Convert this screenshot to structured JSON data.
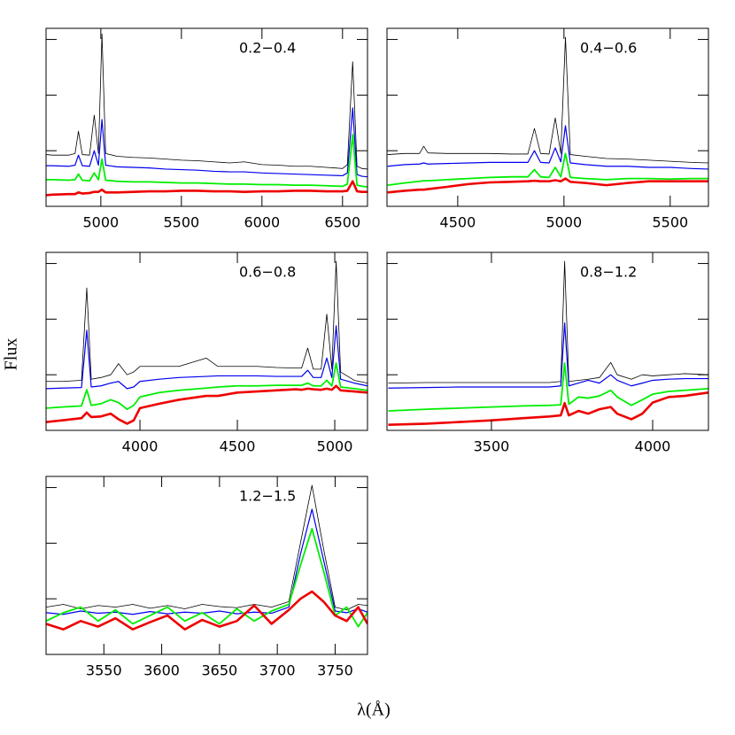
{
  "ylabel": "Flux",
  "xlabel": "λ(Å)",
  "chart_data": [
    {
      "type": "line",
      "annotation": "0.2−0.4",
      "xlim": [
        4660,
        6655
      ],
      "xticks": [
        5000,
        5500,
        6000,
        6500
      ],
      "ylim": [
        0,
        3.2
      ],
      "yticks": [
        0,
        1,
        2,
        3
      ],
      "x": [
        4660,
        4700,
        4800,
        4840,
        4861,
        4885,
        4930,
        4959,
        4985,
        5007,
        5030,
        5100,
        5200,
        5300,
        5400,
        5500,
        5600,
        5700,
        5800,
        5890,
        6000,
        6100,
        6200,
        6300,
        6400,
        6500,
        6530,
        6563,
        6590,
        6620,
        6655
      ],
      "series": [
        {
          "color": "#000000",
          "width": 0.8,
          "values": [
            0.93,
            0.92,
            0.92,
            0.95,
            1.35,
            0.93,
            0.92,
            1.64,
            0.95,
            3.1,
            0.95,
            0.9,
            0.88,
            0.87,
            0.85,
            0.83,
            0.82,
            0.8,
            0.78,
            0.8,
            0.75,
            0.74,
            0.72,
            0.72,
            0.7,
            0.68,
            0.75,
            2.6,
            0.72,
            0.68,
            0.67
          ]
        },
        {
          "color": "#0000ee",
          "width": 1.2,
          "values": [
            0.73,
            0.73,
            0.72,
            0.74,
            0.92,
            0.73,
            0.72,
            1.0,
            0.74,
            1.56,
            0.74,
            0.71,
            0.7,
            0.69,
            0.67,
            0.66,
            0.65,
            0.63,
            0.62,
            0.62,
            0.6,
            0.59,
            0.58,
            0.57,
            0.56,
            0.55,
            0.6,
            1.77,
            0.57,
            0.54,
            0.53
          ]
        },
        {
          "color": "#00ee00",
          "width": 1.8,
          "values": [
            0.48,
            0.48,
            0.47,
            0.48,
            0.58,
            0.47,
            0.46,
            0.6,
            0.48,
            0.85,
            0.47,
            0.45,
            0.44,
            0.44,
            0.43,
            0.42,
            0.42,
            0.41,
            0.4,
            0.4,
            0.39,
            0.39,
            0.38,
            0.38,
            0.37,
            0.36,
            0.4,
            1.29,
            0.38,
            0.36,
            0.35
          ]
        },
        {
          "color": "#ee0000",
          "width": 2.6,
          "values": [
            0.2,
            0.21,
            0.22,
            0.22,
            0.25,
            0.23,
            0.24,
            0.26,
            0.26,
            0.3,
            0.25,
            0.25,
            0.26,
            0.27,
            0.27,
            0.28,
            0.28,
            0.27,
            0.27,
            0.26,
            0.27,
            0.27,
            0.28,
            0.28,
            0.27,
            0.27,
            0.28,
            0.45,
            0.27,
            0.26,
            0.26
          ]
        }
      ]
    },
    {
      "type": "line",
      "annotation": "0.4−0.6",
      "xlim": [
        4167,
        5680
      ],
      "xticks": [
        4500,
        5000,
        5500
      ],
      "ylim": [
        0,
        3.2
      ],
      "yticks": [
        0,
        1,
        2,
        3
      ],
      "x": [
        4170,
        4250,
        4320,
        4340,
        4360,
        4450,
        4550,
        4650,
        4750,
        4830,
        4861,
        4890,
        4930,
        4959,
        4985,
        5007,
        5030,
        5100,
        5200,
        5300,
        5400,
        5500,
        5600,
        5680
      ],
      "series": [
        {
          "color": "#000000",
          "width": 0.8,
          "values": [
            0.93,
            0.95,
            0.95,
            1.08,
            0.96,
            0.95,
            0.95,
            0.95,
            0.94,
            0.94,
            1.4,
            0.95,
            0.94,
            1.59,
            0.95,
            3.04,
            0.93,
            0.9,
            0.86,
            0.85,
            0.83,
            0.81,
            0.79,
            0.78
          ]
        },
        {
          "color": "#0000ee",
          "width": 1.2,
          "values": [
            0.72,
            0.75,
            0.76,
            0.78,
            0.76,
            0.77,
            0.78,
            0.79,
            0.79,
            0.79,
            1.0,
            0.79,
            0.78,
            1.05,
            0.8,
            1.45,
            0.78,
            0.75,
            0.72,
            0.72,
            0.7,
            0.7,
            0.68,
            0.67
          ]
        },
        {
          "color": "#00ee00",
          "width": 1.8,
          "values": [
            0.38,
            0.42,
            0.45,
            0.46,
            0.46,
            0.48,
            0.5,
            0.52,
            0.53,
            0.53,
            0.66,
            0.53,
            0.52,
            0.7,
            0.53,
            0.95,
            0.52,
            0.5,
            0.48,
            0.5,
            0.5,
            0.49,
            0.5,
            0.5
          ]
        },
        {
          "color": "#ee0000",
          "width": 2.6,
          "values": [
            0.25,
            0.28,
            0.3,
            0.3,
            0.31,
            0.35,
            0.4,
            0.43,
            0.44,
            0.45,
            0.46,
            0.45,
            0.45,
            0.47,
            0.45,
            0.5,
            0.44,
            0.42,
            0.38,
            0.42,
            0.45,
            0.45,
            0.45,
            0.45
          ]
        }
      ]
    },
    {
      "type": "line",
      "annotation": "0.6−0.8",
      "xlim": [
        3518,
        5168
      ],
      "xticks": [
        4000,
        4500,
        5000
      ],
      "ylim": [
        0,
        3.2
      ],
      "yticks": [
        0,
        1,
        2,
        3
      ],
      "x": [
        3520,
        3600,
        3700,
        3727,
        3750,
        3800,
        3850,
        3890,
        3934,
        3968,
        4000,
        4100,
        4200,
        4340,
        4400,
        4500,
        4600,
        4700,
        4800,
        4830,
        4861,
        4890,
        4930,
        4959,
        4985,
        5007,
        5030,
        5100,
        5168
      ],
      "series": [
        {
          "color": "#000000",
          "width": 0.8,
          "values": [
            0.88,
            0.88,
            0.9,
            2.56,
            0.92,
            0.95,
            1.0,
            1.2,
            1.0,
            1.05,
            1.15,
            1.15,
            1.15,
            1.3,
            1.15,
            1.15,
            1.15,
            1.13,
            1.12,
            1.12,
            1.48,
            1.1,
            1.1,
            2.09,
            1.1,
            3.04,
            1.05,
            0.9,
            0.85
          ]
        },
        {
          "color": "#0000ee",
          "width": 1.2,
          "values": [
            0.75,
            0.76,
            0.77,
            1.8,
            0.78,
            0.8,
            0.85,
            0.88,
            0.75,
            0.78,
            0.88,
            0.92,
            0.95,
            0.97,
            0.98,
            0.98,
            0.98,
            0.97,
            0.97,
            0.97,
            1.08,
            0.95,
            0.95,
            1.3,
            0.95,
            1.88,
            0.92,
            0.85,
            0.8
          ]
        },
        {
          "color": "#00ee00",
          "width": 1.8,
          "values": [
            0.4,
            0.42,
            0.44,
            0.73,
            0.45,
            0.48,
            0.55,
            0.5,
            0.38,
            0.45,
            0.6,
            0.68,
            0.72,
            0.76,
            0.78,
            0.8,
            0.8,
            0.81,
            0.81,
            0.81,
            0.85,
            0.8,
            0.8,
            0.9,
            0.8,
            1.21,
            0.78,
            0.75,
            0.72
          ]
        },
        {
          "color": "#ee0000",
          "width": 2.6,
          "values": [
            0.15,
            0.18,
            0.22,
            0.32,
            0.24,
            0.25,
            0.3,
            0.2,
            0.12,
            0.18,
            0.4,
            0.48,
            0.55,
            0.62,
            0.62,
            0.68,
            0.7,
            0.72,
            0.74,
            0.73,
            0.75,
            0.74,
            0.73,
            0.75,
            0.73,
            0.8,
            0.72,
            0.7,
            0.68
          ]
        }
      ]
    },
    {
      "type": "line",
      "annotation": "0.8−1.2",
      "xlim": [
        3176,
        4173
      ],
      "xticks": [
        3500,
        4000
      ],
      "ylim": [
        0,
        3.2
      ],
      "yticks": [
        0,
        1,
        2,
        3
      ],
      "x": [
        3180,
        3300,
        3400,
        3500,
        3600,
        3680,
        3715,
        3727,
        3740,
        3770,
        3800,
        3835,
        3870,
        3890,
        3934,
        3968,
        4000,
        4050,
        4100,
        4173
      ],
      "series": [
        {
          "color": "#000000",
          "width": 0.8,
          "values": [
            0.85,
            0.86,
            0.86,
            0.86,
            0.86,
            0.86,
            0.88,
            3.04,
            0.88,
            0.9,
            0.92,
            0.95,
            1.22,
            1.0,
            0.92,
            1.0,
            0.98,
            1.0,
            1.02,
            1.0
          ]
        },
        {
          "color": "#0000ee",
          "width": 1.2,
          "values": [
            0.76,
            0.77,
            0.78,
            0.78,
            0.78,
            0.78,
            0.8,
            1.93,
            0.8,
            0.85,
            0.9,
            0.85,
            1.0,
            0.9,
            0.8,
            0.85,
            0.9,
            0.92,
            0.93,
            0.93
          ]
        },
        {
          "color": "#00ee00",
          "width": 1.8,
          "values": [
            0.35,
            0.38,
            0.4,
            0.42,
            0.44,
            0.45,
            0.46,
            1.21,
            0.47,
            0.6,
            0.58,
            0.62,
            0.72,
            0.6,
            0.45,
            0.55,
            0.65,
            0.7,
            0.72,
            0.75
          ]
        },
        {
          "color": "#ee0000",
          "width": 2.6,
          "values": [
            0.1,
            0.12,
            0.15,
            0.18,
            0.22,
            0.25,
            0.27,
            0.49,
            0.27,
            0.35,
            0.3,
            0.38,
            0.42,
            0.3,
            0.2,
            0.3,
            0.5,
            0.6,
            0.62,
            0.68
          ]
        }
      ]
    },
    {
      "type": "line",
      "annotation": "1.2−1.5",
      "xlim": [
        3500,
        3778
      ],
      "xticks": [
        3550,
        3600,
        3650,
        3700,
        3750
      ],
      "ylim": [
        0,
        3.2
      ],
      "yticks": [
        0,
        1,
        2,
        3
      ],
      "x": [
        3500,
        3515,
        3530,
        3545,
        3560,
        3575,
        3590,
        3605,
        3620,
        3635,
        3650,
        3665,
        3680,
        3695,
        3710,
        3720,
        3730,
        3740,
        3750,
        3760,
        3770,
        3778
      ],
      "series": [
        {
          "color": "#000000",
          "width": 0.8,
          "values": [
            0.85,
            0.9,
            0.82,
            0.88,
            0.85,
            0.9,
            0.83,
            0.88,
            0.82,
            0.9,
            0.86,
            0.84,
            0.9,
            0.85,
            0.95,
            2.0,
            3.04,
            1.9,
            0.85,
            0.8,
            0.9,
            0.88
          ]
        },
        {
          "color": "#0000ee",
          "width": 1.2,
          "values": [
            0.75,
            0.72,
            0.78,
            0.74,
            0.76,
            0.72,
            0.77,
            0.73,
            0.76,
            0.74,
            0.78,
            0.73,
            0.76,
            0.74,
            0.85,
            1.8,
            2.61,
            1.7,
            0.78,
            0.75,
            0.82,
            0.76
          ]
        },
        {
          "color": "#00ee00",
          "width": 1.8,
          "values": [
            0.6,
            0.75,
            0.85,
            0.6,
            0.8,
            0.55,
            0.7,
            0.85,
            0.6,
            0.75,
            0.55,
            0.82,
            0.6,
            0.78,
            0.9,
            1.6,
            2.26,
            1.5,
            0.7,
            0.85,
            0.5,
            0.75
          ]
        },
        {
          "color": "#ee0000",
          "width": 2.6,
          "values": [
            0.55,
            0.45,
            0.6,
            0.5,
            0.65,
            0.45,
            0.58,
            0.7,
            0.45,
            0.62,
            0.5,
            0.6,
            0.88,
            0.55,
            0.8,
            1.0,
            1.13,
            0.95,
            0.7,
            0.6,
            0.85,
            0.55
          ]
        }
      ]
    }
  ]
}
